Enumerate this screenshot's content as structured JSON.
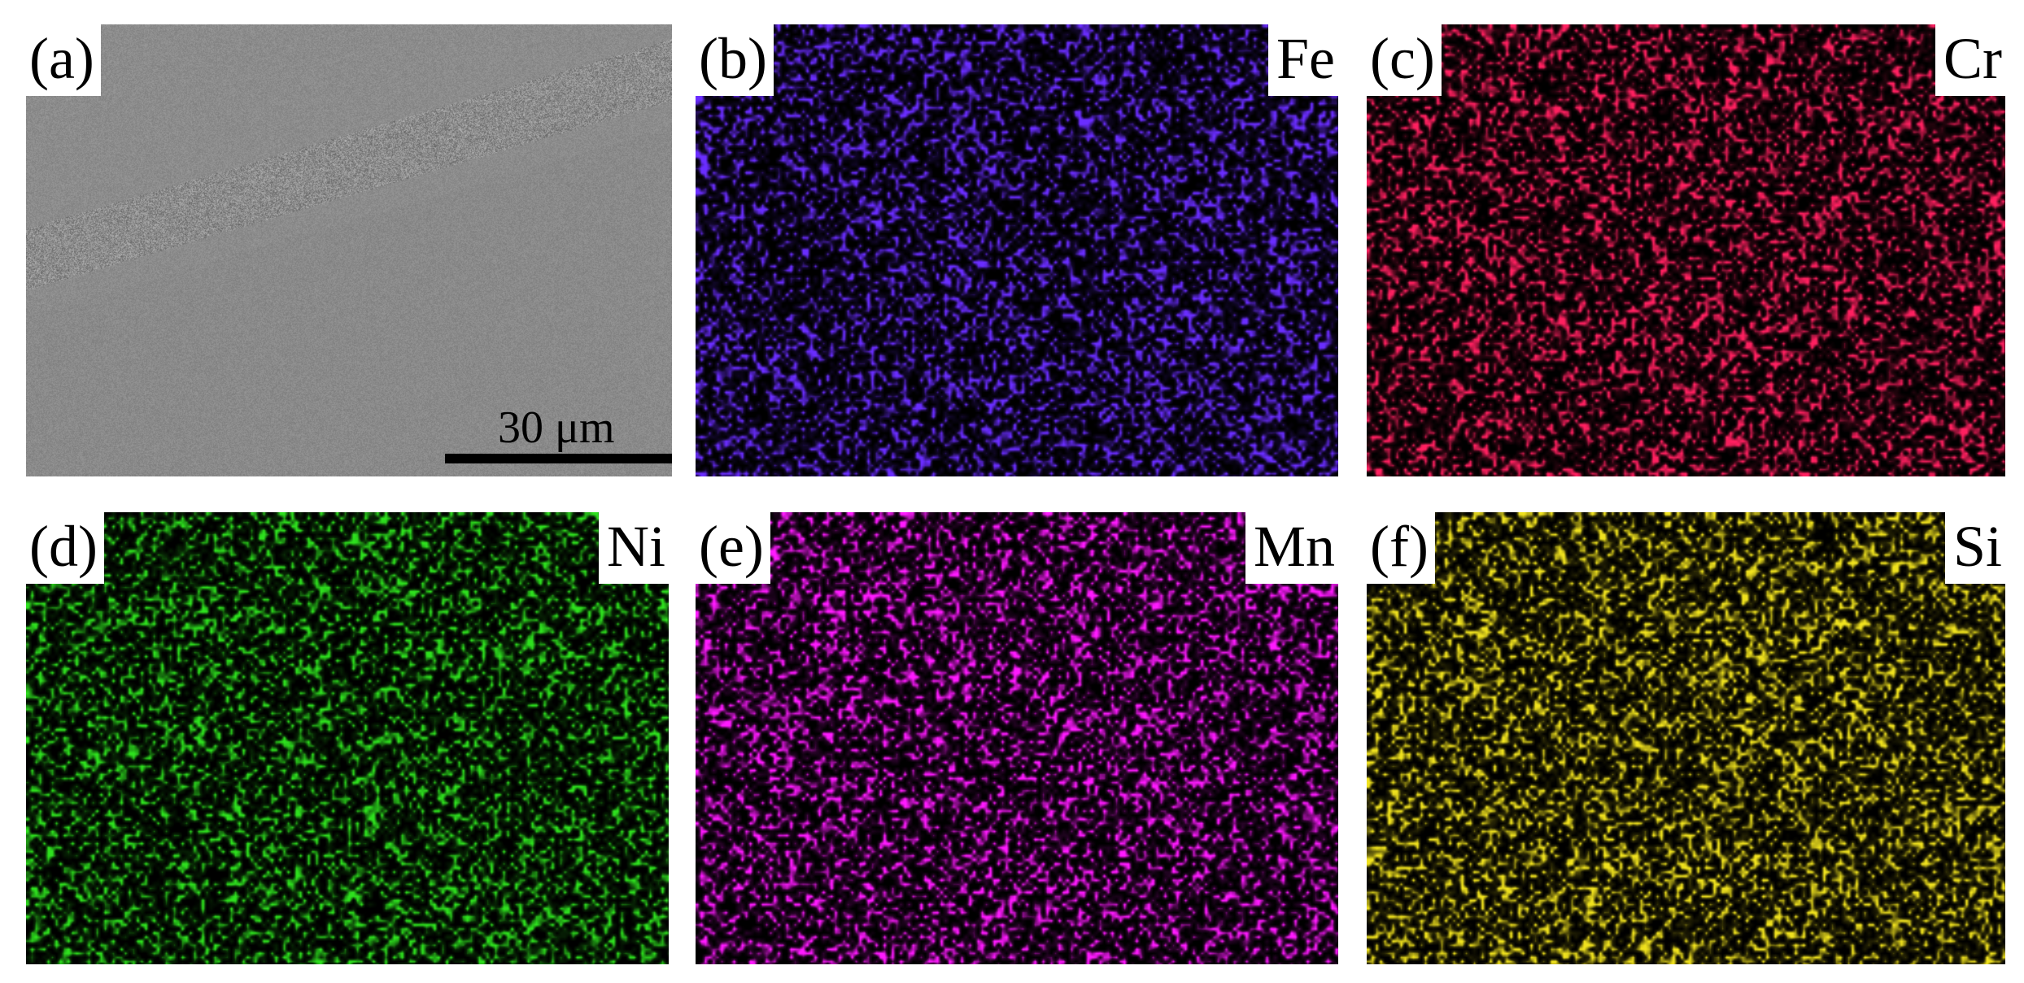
{
  "panels": [
    {
      "id": "a",
      "panel_label": "(a)",
      "element": "",
      "type": "micrograph",
      "color": "#8c8c8c",
      "scale_bar": "30 μm"
    },
    {
      "id": "b",
      "panel_label": "(b)",
      "element": "Fe",
      "type": "eds-map",
      "color": "#6a2dff"
    },
    {
      "id": "c",
      "panel_label": "(c)",
      "element": "Cr",
      "type": "eds-map",
      "color": "#ff2060"
    },
    {
      "id": "d",
      "panel_label": "(d)",
      "element": "Ni",
      "type": "eds-map",
      "color": "#2ee01e"
    },
    {
      "id": "e",
      "panel_label": "(e)",
      "element": "Mn",
      "type": "eds-map",
      "color": "#ff1aff"
    },
    {
      "id": "f",
      "panel_label": "(f)",
      "element": "Si",
      "type": "eds-map",
      "color": "#f0e21e"
    }
  ]
}
